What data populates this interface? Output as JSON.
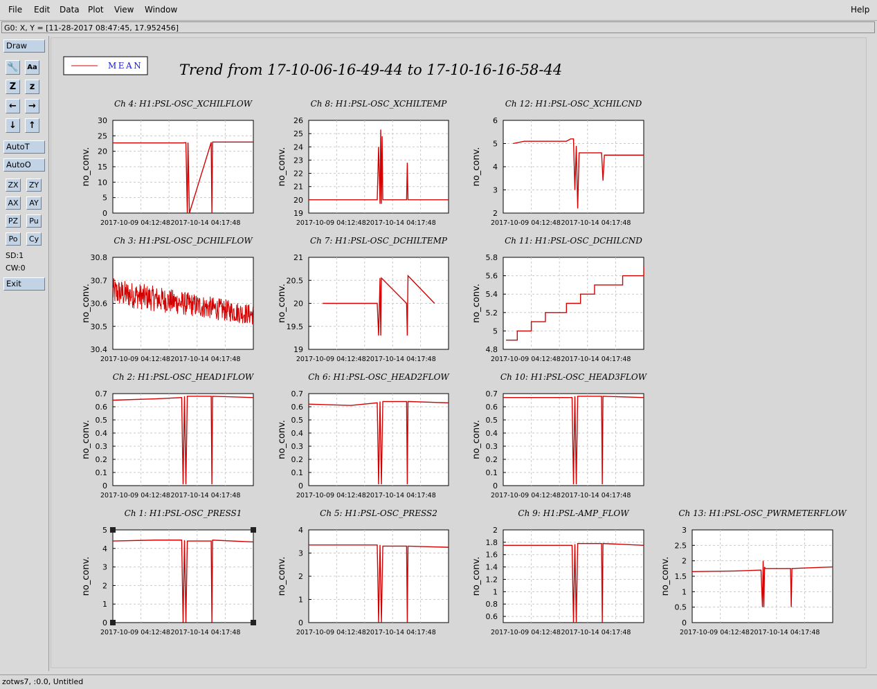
{
  "menubar": {
    "items": [
      "File",
      "Edit",
      "Data",
      "Plot",
      "View",
      "Window"
    ],
    "help": "Help"
  },
  "status": {
    "cursor_readout": "G0: X, Y = [11-28-2017 08:47:45, 17.952456]"
  },
  "toolbar": {
    "draw": "Draw",
    "icon_buttons": [
      "wrench-icon",
      "text-size-icon",
      "zoom-z-large-icon",
      "zoom-z-small-icon",
      "arrow-left-icon",
      "arrow-right-icon",
      "arrow-down-icon",
      "arrow-up-icon"
    ],
    "icon_glyphs": [
      "🔧",
      "Aa",
      "Z",
      "z",
      "←",
      "→",
      "↓",
      "↑"
    ],
    "autot": "AutoT",
    "autoo": "AutoO",
    "small_buttons": [
      "ZX",
      "ZY",
      "AX",
      "AY",
      "PZ",
      "Pu",
      "Po",
      "Cy"
    ],
    "sd": "SD:1",
    "cw": "CW:0",
    "exit": "Exit"
  },
  "legend": {
    "entry": "MEAN",
    "color": "#d40000"
  },
  "trend_title": "Trend from 17-10-06-16-49-44 to 17-10-16-16-58-44",
  "bottom_status": "zotws7, :0.0, Untitled",
  "chart_data": [
    {
      "type": "line",
      "title": "Ch 4: H1:PSL-OSC_XCHILFLOW",
      "ylabel": "no_conv.",
      "xticks": [
        "2017-10-09 04:12:48",
        "2017-10-14 04:17:48"
      ],
      "yticks": [
        "0",
        "5",
        "10",
        "15",
        "20",
        "25",
        "30"
      ],
      "ylim": [
        0,
        30
      ],
      "grid": true,
      "x": [
        0,
        0.5,
        0.52,
        0.53,
        0.535,
        0.545,
        0.7,
        0.705,
        0.71,
        1
      ],
      "y": [
        22.7,
        22.7,
        22.8,
        0,
        22.8,
        0,
        22.9,
        0,
        23,
        23
      ]
    },
    {
      "type": "line",
      "title": "Ch 8: H1:PSL-OSC_XCHILTEMP",
      "ylabel": "no_conv.",
      "xticks": [
        "2017-10-09 04:12:48",
        "2017-10-14 04:17:48"
      ],
      "yticks": [
        "19",
        "20",
        "21",
        "22",
        "23",
        "24",
        "25",
        "26"
      ],
      "ylim": [
        19,
        26
      ],
      "grid": true,
      "x": [
        0,
        0.49,
        0.5,
        0.51,
        0.515,
        0.52,
        0.525,
        0.53,
        0.7,
        0.705,
        0.71,
        1
      ],
      "y": [
        20,
        20,
        24,
        19.7,
        25.3,
        19.7,
        24.8,
        20,
        20,
        22.8,
        20,
        20
      ]
    },
    {
      "type": "line",
      "title": "Ch 12: H1:PSL-OSC_XCHILCND",
      "ylabel": "no_conv.",
      "xticks": [
        "2017-10-09 04:12:48",
        "2017-10-14 04:17:48"
      ],
      "yticks": [
        "2",
        "3",
        "4",
        "5",
        "6"
      ],
      "ylim": [
        2,
        6
      ],
      "grid": true,
      "x": [
        0.07,
        0.15,
        0.45,
        0.48,
        0.5,
        0.51,
        0.52,
        0.53,
        0.54,
        0.7,
        0.71,
        0.72,
        1
      ],
      "y": [
        5,
        5.1,
        5.1,
        5.2,
        5.2,
        3,
        4.9,
        2.2,
        4.6,
        4.6,
        3.4,
        4.5,
        4.5
      ]
    },
    {
      "type": "line",
      "title": "Ch 3: H1:PSL-OSC_DCHILFLOW",
      "ylabel": "no_conv.",
      "xticks": [
        "2017-10-09 04:12:48",
        "2017-10-14 04:17:48"
      ],
      "yticks": [
        "30.4",
        "30.5",
        "30.6",
        "30.7",
        "30.8"
      ],
      "ylim": [
        30.4,
        30.8
      ],
      "grid": true,
      "noise": true,
      "x": [
        0,
        1
      ],
      "y": [
        30.65,
        30.55
      ]
    },
    {
      "type": "line",
      "title": "Ch 7: H1:PSL-OSC_DCHILTEMP",
      "ylabel": "no_conv.",
      "xticks": [
        "2017-10-09 04:12:48",
        "2017-10-14 04:17:48"
      ],
      "yticks": [
        "19",
        "19.5",
        "20",
        "20.5",
        "21"
      ],
      "ylim": [
        19,
        21
      ],
      "grid": true,
      "x": [
        0.1,
        0.49,
        0.5,
        0.51,
        0.515,
        0.52,
        0.7,
        0.705,
        0.71,
        0.9
      ],
      "y": [
        20,
        20,
        19.3,
        20.55,
        19.3,
        20.55,
        20,
        19.3,
        20.6,
        20
      ]
    },
    {
      "type": "line",
      "title": "Ch 11: H1:PSL-OSC_DCHILCND",
      "ylabel": "no_conv.",
      "xticks": [
        "2017-10-09 04:12:48",
        "2017-10-14 04:17:48"
      ],
      "yticks": [
        "4.8",
        "5",
        "5.2",
        "5.4",
        "5.6",
        "5.8"
      ],
      "ylim": [
        4.8,
        5.8
      ],
      "grid": true,
      "step": true,
      "x": [
        0.02,
        0.06,
        0.1,
        0.2,
        0.3,
        0.45,
        0.5,
        0.55,
        0.65,
        0.8,
        0.85,
        0.98,
        1
      ],
      "y": [
        4.9,
        4.9,
        5,
        5.1,
        5.2,
        5.3,
        5.3,
        5.4,
        5.5,
        5.5,
        5.6,
        5.6,
        5.7
      ]
    },
    {
      "type": "line",
      "title": "Ch 2: H1:PSL-OSC_HEAD1FLOW",
      "ylabel": "no_conv.",
      "xticks": [
        "2017-10-09 04:12:48",
        "2017-10-14 04:17:48"
      ],
      "yticks": [
        "0",
        "0.1",
        "0.2",
        "0.3",
        "0.4",
        "0.5",
        "0.6",
        "0.7"
      ],
      "ylim": [
        0,
        0.7
      ],
      "grid": true,
      "x": [
        0,
        0.3,
        0.49,
        0.5,
        0.51,
        0.52,
        0.53,
        0.7,
        0.705,
        0.71,
        1
      ],
      "y": [
        0.65,
        0.66,
        0.67,
        0.01,
        0.68,
        0.01,
        0.68,
        0.68,
        0.01,
        0.68,
        0.67
      ]
    },
    {
      "type": "line",
      "title": "Ch 6: H1:PSL-OSC_HEAD2FLOW",
      "ylabel": "no_conv.",
      "xticks": [
        "2017-10-09 04:12:48",
        "2017-10-14 04:17:48"
      ],
      "yticks": [
        "0",
        "0.1",
        "0.2",
        "0.3",
        "0.4",
        "0.5",
        "0.6",
        "0.7"
      ],
      "ylim": [
        0,
        0.7
      ],
      "grid": true,
      "x": [
        0,
        0.3,
        0.49,
        0.5,
        0.51,
        0.52,
        0.53,
        0.7,
        0.705,
        0.71,
        1
      ],
      "y": [
        0.62,
        0.61,
        0.63,
        0.01,
        0.64,
        0.01,
        0.64,
        0.64,
        0.01,
        0.64,
        0.63
      ]
    },
    {
      "type": "line",
      "title": "Ch 10: H1:PSL-OSC_HEAD3FLOW",
      "ylabel": "no_conv.",
      "xticks": [
        "2017-10-09 04:12:48",
        "2017-10-14 04:17:48"
      ],
      "yticks": [
        "0",
        "0.1",
        "0.2",
        "0.3",
        "0.4",
        "0.5",
        "0.6",
        "0.7"
      ],
      "ylim": [
        0,
        0.7
      ],
      "grid": true,
      "x": [
        0,
        0.3,
        0.49,
        0.5,
        0.51,
        0.52,
        0.53,
        0.7,
        0.705,
        0.71,
        1
      ],
      "y": [
        0.67,
        0.67,
        0.67,
        0.01,
        0.68,
        0.01,
        0.68,
        0.68,
        0.01,
        0.68,
        0.67
      ]
    },
    {
      "type": "line",
      "title": "Ch 1: H1:PSL-OSC_PRESS1",
      "ylabel": "no_conv.",
      "xticks": [
        "2017-10-09 04:12:48",
        "2017-10-14 04:17:48"
      ],
      "yticks": [
        "0",
        "1",
        "2",
        "3",
        "4",
        "5"
      ],
      "ylim": [
        0,
        5
      ],
      "grid": true,
      "selected": true,
      "x": [
        0,
        0.3,
        0.49,
        0.5,
        0.51,
        0.52,
        0.53,
        0.7,
        0.705,
        0.71,
        1
      ],
      "y": [
        4.4,
        4.45,
        4.45,
        0.02,
        4.45,
        0.02,
        4.4,
        4.4,
        0.02,
        4.45,
        4.35
      ]
    },
    {
      "type": "line",
      "title": "Ch 5: H1:PSL-OSC_PRESS2",
      "ylabel": "no_conv.",
      "xticks": [
        "2017-10-09 04:12:48",
        "2017-10-14 04:17:48"
      ],
      "yticks": [
        "0",
        "1",
        "2",
        "3",
        "4"
      ],
      "ylim": [
        0,
        4
      ],
      "grid": true,
      "x": [
        0,
        0.3,
        0.49,
        0.5,
        0.51,
        0.52,
        0.53,
        0.7,
        0.705,
        0.71,
        1
      ],
      "y": [
        3.35,
        3.35,
        3.35,
        0.02,
        3.35,
        0.02,
        3.3,
        3.3,
        0.02,
        3.3,
        3.25
      ]
    },
    {
      "type": "line",
      "title": "Ch 9: H1:PSL-AMP_FLOW",
      "ylabel": "no_conv.",
      "xticks": [
        "2017-10-09 04:12:48",
        "2017-10-14 04:17:48"
      ],
      "yticks": [
        "0.6",
        "0.8",
        "1",
        "1.2",
        "1.4",
        "1.6",
        "1.8",
        "2"
      ],
      "ylim": [
        0.5,
        2
      ],
      "grid": true,
      "x": [
        0,
        0.3,
        0.49,
        0.5,
        0.51,
        0.52,
        0.53,
        0.7,
        0.705,
        0.71,
        1
      ],
      "y": [
        1.75,
        1.75,
        1.75,
        0.5,
        1.77,
        0.5,
        1.78,
        1.78,
        0.5,
        1.78,
        1.75
      ]
    },
    {
      "type": "line",
      "title": "Ch 13: H1:PSL-OSC_PWRMETERFLOW",
      "ylabel": "no_conv.",
      "xticks": [
        "2017-10-09 04:12:48",
        "2017-10-14 04:17:48"
      ],
      "yticks": [
        "0",
        "0.5",
        "1",
        "1.5",
        "2",
        "2.5",
        "3"
      ],
      "ylim": [
        0,
        3
      ],
      "grid": true,
      "x": [
        0,
        0.3,
        0.49,
        0.5,
        0.505,
        0.51,
        0.515,
        0.52,
        0.7,
        0.705,
        0.71,
        1
      ],
      "y": [
        1.65,
        1.67,
        1.7,
        0.5,
        2,
        0.5,
        1.8,
        1.75,
        1.75,
        0.5,
        1.75,
        1.8
      ]
    }
  ]
}
